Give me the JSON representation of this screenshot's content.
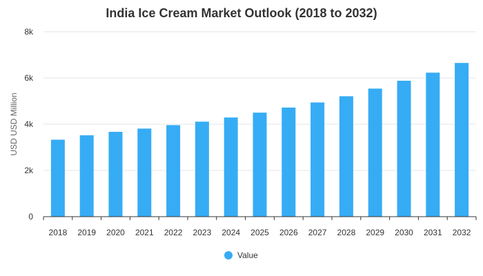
{
  "chart_data": {
    "type": "bar",
    "title": "India Ice Cream Market Outlook (2018 to 2032)",
    "xlabel": "",
    "ylabel": "USD USD Million",
    "categories": [
      "2018",
      "2019",
      "2020",
      "2021",
      "2022",
      "2023",
      "2024",
      "2025",
      "2026",
      "2027",
      "2028",
      "2029",
      "2030",
      "2031",
      "2032"
    ],
    "series": [
      {
        "name": "Value",
        "color": "#36ACF5",
        "values": [
          3330,
          3520,
          3670,
          3810,
          3960,
          4110,
          4290,
          4500,
          4720,
          4940,
          5210,
          5540,
          5880,
          6230,
          6650
        ]
      }
    ],
    "ylim": [
      0,
      8000
    ],
    "yticks": [
      {
        "value": 0,
        "label": "0"
      },
      {
        "value": 2000,
        "label": "2k"
      },
      {
        "value": 4000,
        "label": "4k"
      },
      {
        "value": 6000,
        "label": "6k"
      },
      {
        "value": 8000,
        "label": "8k"
      }
    ],
    "grid": true,
    "legend_position": "bottom-center"
  }
}
